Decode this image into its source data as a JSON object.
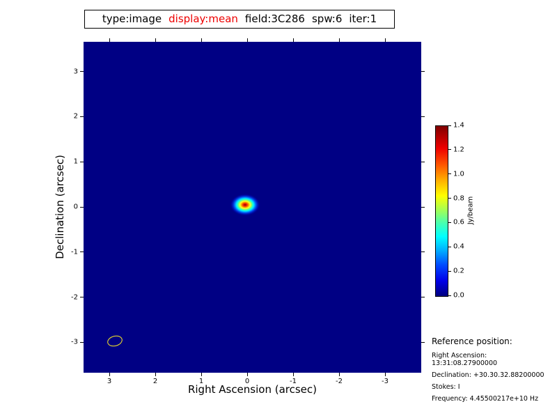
{
  "header": {
    "segments": [
      {
        "text": "type:image",
        "color": "#000000"
      },
      {
        "text": "display:mean",
        "color": "#ee0000"
      },
      {
        "text": "field:3C286",
        "color": "#000000"
      },
      {
        "text": "spw:6",
        "color": "#000000"
      },
      {
        "text": "iter:1",
        "color": "#000000"
      }
    ]
  },
  "chart_data": {
    "type": "heatmap",
    "title": "type:image display:mean field:3C286 spw:6 iter:1",
    "xlabel": "Right Ascension (arcsec)",
    "ylabel": "Declination (arcsec)",
    "x_ticks": [
      3,
      2,
      1,
      0,
      -1,
      -2,
      -3
    ],
    "y_ticks": [
      3,
      2,
      1,
      0,
      -1,
      -2,
      -3
    ],
    "xlim": [
      3.6,
      -3.8
    ],
    "ylim": [
      -3.7,
      3.7
    ],
    "x_axis_inverted": true,
    "grid": false,
    "colormap": "jet",
    "background_value": 0.0,
    "background_color": "#000084",
    "colorbar": {
      "label": "Jy/beam",
      "min": 0.0,
      "max": 1.4,
      "ticks": [
        1.4,
        1.2,
        1.0,
        0.8,
        0.6,
        0.4,
        0.2,
        0.0
      ],
      "position": "right"
    },
    "features": [
      {
        "name": "point-source",
        "x": 0.05,
        "y": 0.05,
        "peak": 1.4
      },
      {
        "name": "beam-ellipse",
        "x": 2.9,
        "y": -2.95,
        "outline_color": "#ffee22"
      }
    ]
  },
  "reference": {
    "heading": "Reference position:",
    "lines": [
      "Right Ascension: 13:31:08.27900000",
      "Declination: +30.30.32.88200000",
      "Stokes: I",
      "Frequency: 4.45500217e+10 Hz"
    ]
  }
}
